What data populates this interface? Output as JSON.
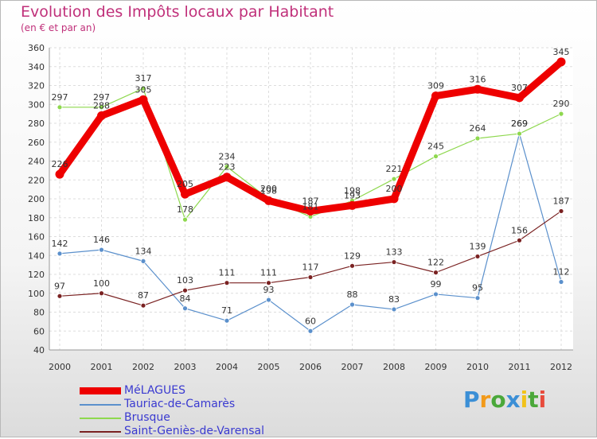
{
  "chart_data": {
    "type": "line",
    "title": "Evolution des Impôts locaux par Habitant",
    "subtitle": "(en € et par an)",
    "categories": [
      "2000",
      "2001",
      "2002",
      "2003",
      "2004",
      "2005",
      "2006",
      "2007",
      "2008",
      "2009",
      "2010",
      "2011",
      "2012"
    ],
    "ylim": [
      40,
      360
    ],
    "yticks": [
      40,
      60,
      80,
      100,
      120,
      140,
      160,
      180,
      200,
      220,
      240,
      260,
      280,
      300,
      320,
      340,
      360
    ],
    "grid": true,
    "legend_position": "bottom-left",
    "series": [
      {
        "name": "MéLAGUES",
        "color": "#ee0000",
        "values": [
          226,
          288,
          305,
          205,
          223,
          198,
          187,
          193,
          200,
          309,
          316,
          307,
          345
        ]
      },
      {
        "name": "Tauriac-de-Camarès",
        "color": "#5b90cc",
        "values": [
          142,
          146,
          134,
          84,
          71,
          93,
          60,
          88,
          83,
          99,
          95,
          269,
          112
        ]
      },
      {
        "name": "Brusque",
        "color": "#8ed84e",
        "values": [
          297,
          297,
          317,
          178,
          234,
          200,
          181,
          198,
          221,
          245,
          264,
          269,
          290
        ]
      },
      {
        "name": "Saint-Geniès-de-Varensal",
        "color": "#7a2222",
        "values": [
          97,
          100,
          87,
          103,
          111,
          111,
          117,
          129,
          133,
          122,
          139,
          156,
          187
        ]
      }
    ]
  },
  "logo": {
    "text": "Proxiti",
    "letters": [
      "P",
      "r",
      "o",
      "x",
      "i",
      "t",
      "i"
    ],
    "colors": [
      "#3b8fd6",
      "#f29a1a",
      "#4aa83a",
      "#3b8fd6",
      "#f2c21a",
      "#4aa83a",
      "#e84b3c"
    ]
  }
}
